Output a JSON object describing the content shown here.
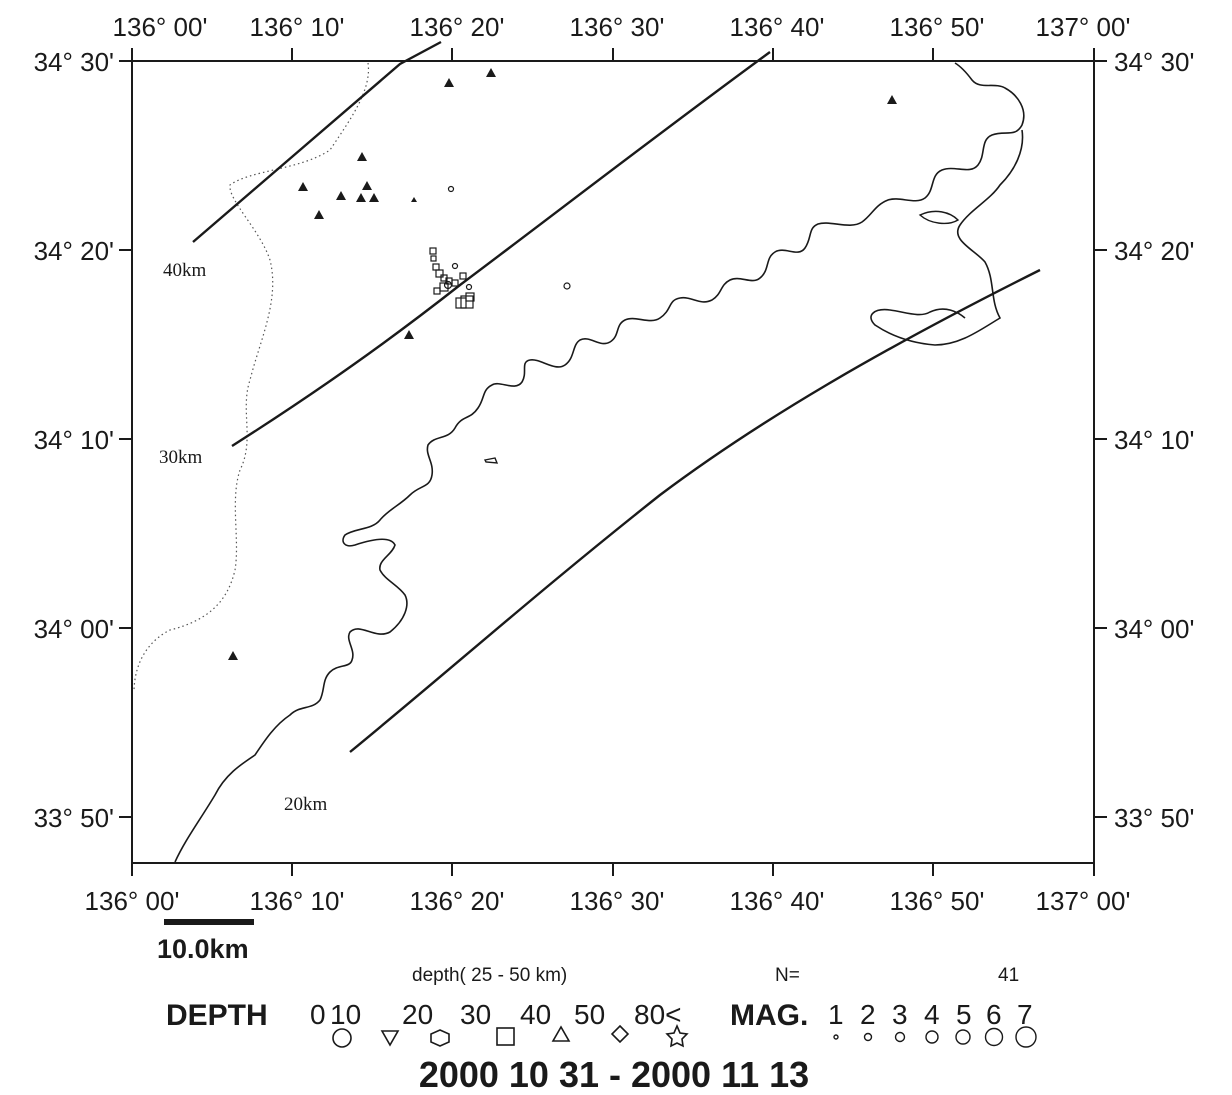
{
  "map": {
    "lon_ticks": [
      "136° 00'",
      "136° 10'",
      "136° 20'",
      "136° 30'",
      "136° 40'",
      "136° 50'",
      "137° 00'"
    ],
    "lat_ticks": [
      "34° 30'",
      "34° 20'",
      "34° 10'",
      "34° 00'",
      "33° 50'"
    ],
    "lon_range": [
      136.0,
      137.0
    ],
    "lat_range": [
      33.8,
      34.5
    ],
    "contour_labels": [
      "40km",
      "30km",
      "20km"
    ],
    "scale_bar_label": "10.0km",
    "colors": {
      "ink": "#1a1a1a",
      "background": "#ffffff"
    }
  },
  "legend": {
    "depth_range_text": "depth( 25 -  50 km)",
    "n_label": "N=",
    "n_value": "41",
    "depth_title": "DEPTH",
    "depth_values": [
      "0",
      "10",
      "20",
      "30",
      "40",
      "50",
      "80<"
    ],
    "depth_symbols": [
      "circle-icon",
      "inverted-triangle-icon",
      "hexagon-icon",
      "square-icon",
      "triangle-icon",
      "diamond-icon",
      "star-icon"
    ],
    "mag_title": "MAG.",
    "mag_values": [
      "1",
      "2",
      "3",
      "4",
      "5",
      "6",
      "7"
    ]
  },
  "date_range": "2000 10 31 - 2000 11 13"
}
